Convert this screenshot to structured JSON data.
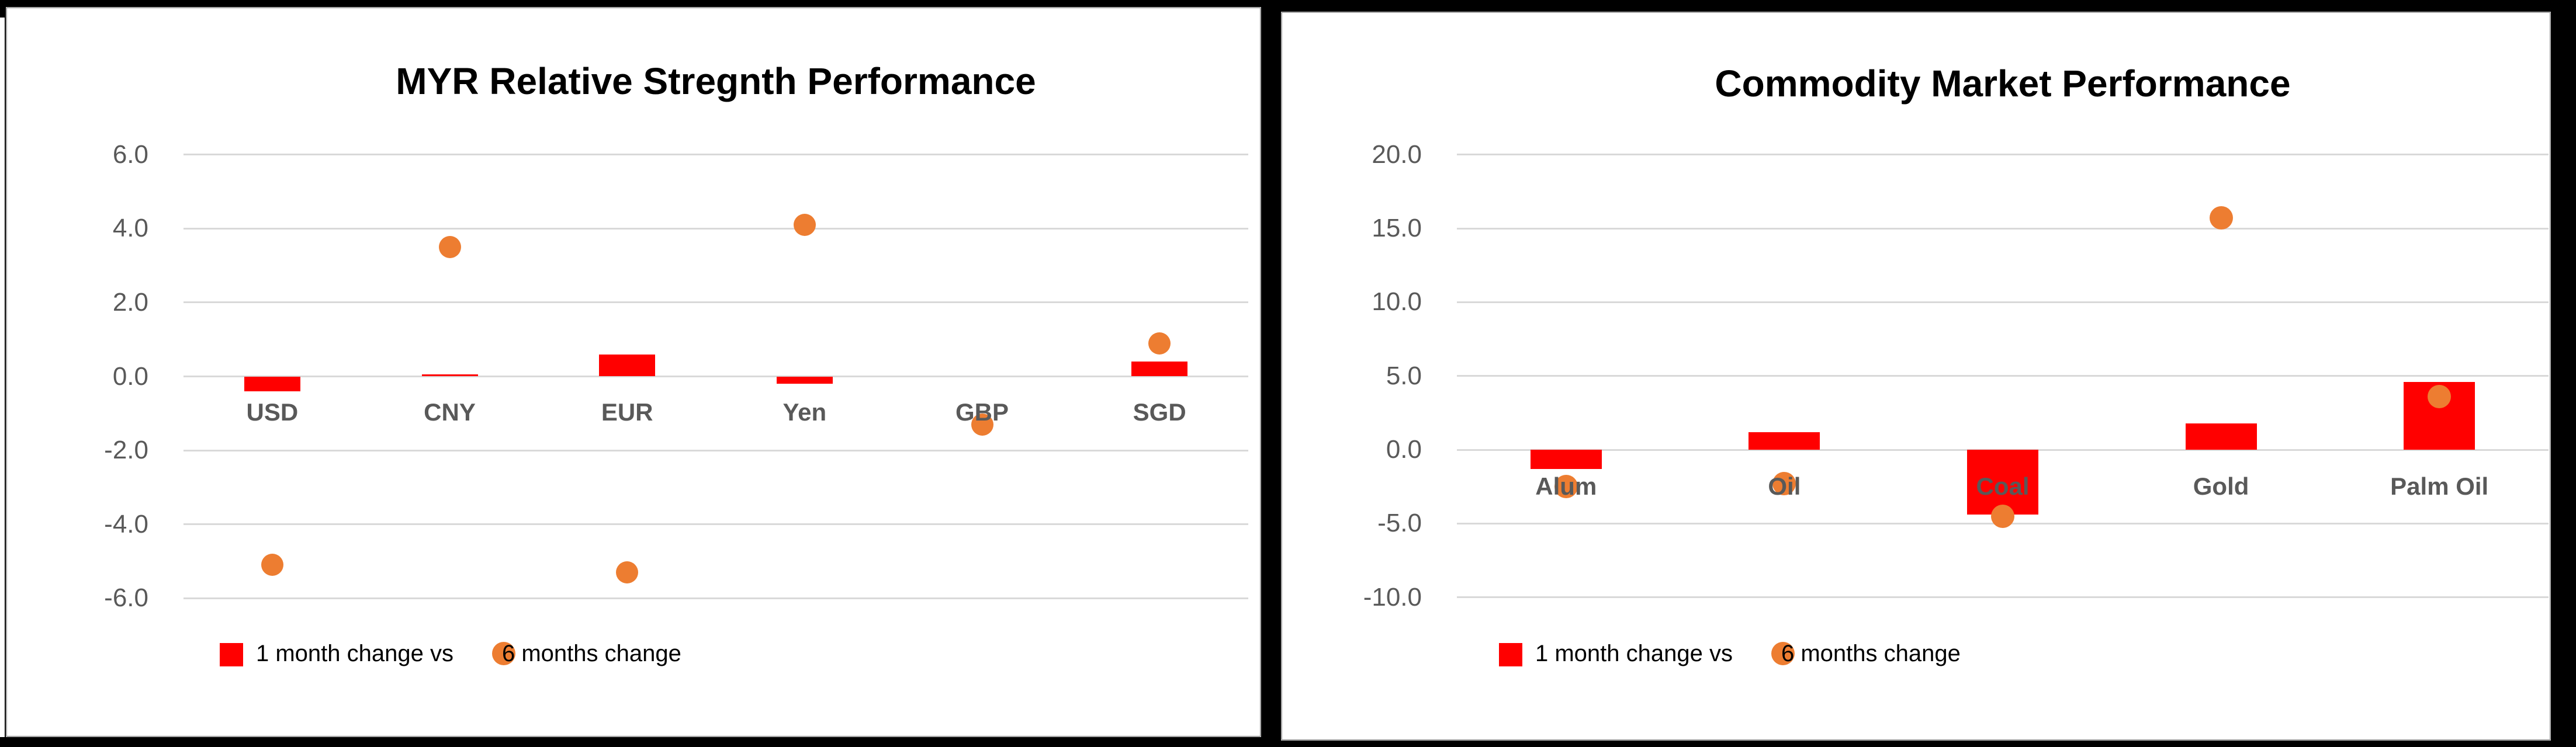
{
  "colors": {
    "bar_series": "#FF0000",
    "point_series": "#ED7D31",
    "gridline": "#D9D9D9",
    "axis_text": "#595959",
    "title_text": "#000000",
    "card_background": "#FFFFFF",
    "page_background": "#000000"
  },
  "chart_data": [
    {
      "type": "bar",
      "subtype": "combo-bar-and-scatter",
      "title": "MYR Relative Stregnth Performance",
      "categories": [
        "USD",
        "CNY",
        "EUR",
        "Yen",
        "GBP",
        "SGD"
      ],
      "series": [
        {
          "name": "1 month change vs",
          "mark": "bar",
          "values": [
            -0.4,
            0.05,
            0.6,
            -0.2,
            0.0,
            0.4
          ]
        },
        {
          "name": "6 months change",
          "mark": "point",
          "values": [
            -5.1,
            3.5,
            -5.3,
            4.1,
            -1.3,
            0.9
          ]
        }
      ],
      "xlabel": "",
      "ylabel": "",
      "ylim": [
        -6.0,
        6.0
      ],
      "y_tick_step": 2.0,
      "y_ticks": [
        "6.0",
        "4.0",
        "2.0",
        "0.0",
        "-2.0",
        "-4.0",
        "-6.0"
      ],
      "grid": "horizontal",
      "legend_position": "bottom"
    },
    {
      "type": "bar",
      "subtype": "combo-bar-and-scatter",
      "title": "Commodity Market Performance",
      "categories": [
        "Alum",
        "Oil",
        "Coal",
        "Gold",
        "Palm Oil"
      ],
      "series": [
        {
          "name": "1 month change vs",
          "mark": "bar",
          "values": [
            -1.3,
            1.2,
            -4.4,
            1.8,
            4.6
          ]
        },
        {
          "name": "6 months change",
          "mark": "point",
          "values": [
            -2.5,
            -2.3,
            -4.5,
            15.7,
            3.6
          ]
        }
      ],
      "xlabel": "",
      "ylabel": "",
      "ylim": [
        -10.0,
        20.0
      ],
      "y_tick_step": 5.0,
      "y_ticks": [
        "20.0",
        "15.0",
        "10.0",
        "5.0",
        "0.0",
        "-5.0",
        "-10.0"
      ],
      "grid": "horizontal",
      "legend_position": "bottom"
    }
  ]
}
